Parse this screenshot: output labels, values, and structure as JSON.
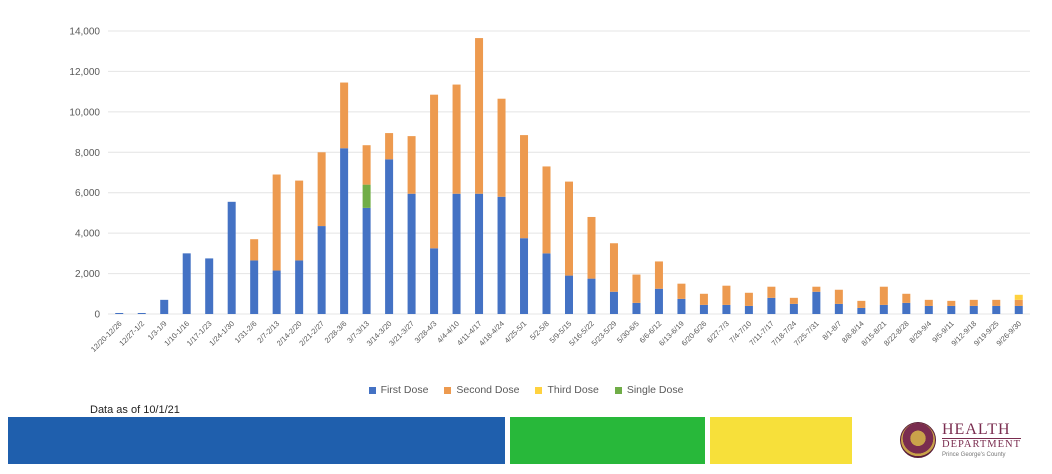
{
  "colors": {
    "first": "#4472c4",
    "second": "#ed9a4f",
    "third": "#ffd23f",
    "single": "#70ad47",
    "grid": "#e4e4e4",
    "band_blue": "#1f5fad",
    "band_green": "#28b83a",
    "band_yellow": "#f7e03a"
  },
  "chart_data": {
    "type": "bar",
    "stacked": true,
    "title": "",
    "xlabel": "",
    "ylabel": "",
    "ylim": [
      0,
      14000
    ],
    "yticks": [
      "0",
      "2,000",
      "4,000",
      "6,000",
      "8,000",
      "10,000",
      "12,000",
      "14,000"
    ],
    "grid": true,
    "legend_position": "bottom",
    "categories": [
      "12/20-12/26",
      "12/27-1/2",
      "1/3-1/9",
      "1/10-1/16",
      "1/17-1/23",
      "1/24-1/30",
      "1/31-2/6",
      "2/7-2/13",
      "2/14-2/20",
      "2/21-2/27",
      "2/28-3/6",
      "3/7-3/13",
      "3/14-3/20",
      "3/21-3/27",
      "3/28-4/3",
      "4/4-4/10",
      "4/11-4/17",
      "4/18-4/24",
      "4/25-5/1",
      "5/2-5/8",
      "5/9-5/15",
      "5/16-5/22",
      "5/23-5/29",
      "5/30-6/5",
      "6/6-6/12",
      "6/13-6/19",
      "6/20-6/26",
      "6/27-7/3",
      "7/4-7/10",
      "7/11-7/17",
      "7/18-7/24",
      "7/25-7/31",
      "8/1-8/7",
      "8/8-8/14",
      "8/15-8/21",
      "8/22-8/28",
      "8/29-9/4",
      "9/5-9/11",
      "9/12-9/18",
      "9/19-9/25",
      "9/26-9/30"
    ],
    "series": [
      {
        "name": "First Dose",
        "values": [
          50,
          50,
          700,
          3000,
          2750,
          5550,
          2650,
          2150,
          2650,
          4350,
          8200,
          5250,
          7650,
          5950,
          3250,
          5950,
          5950,
          5800,
          3750,
          3000,
          1900,
          1750,
          1100,
          550,
          1250,
          750,
          450,
          450,
          400,
          800,
          500,
          1100,
          500,
          300,
          450,
          550,
          400,
          400,
          400,
          400,
          400
        ]
      },
      {
        "name": "Second Dose",
        "values": [
          0,
          0,
          0,
          0,
          0,
          0,
          1050,
          4750,
          3950,
          3650,
          3250,
          1950,
          1300,
          2850,
          7600,
          5400,
          7700,
          4850,
          5100,
          4300,
          4650,
          3050,
          2400,
          1400,
          1350,
          750,
          550,
          950,
          650,
          550,
          300,
          250,
          700,
          350,
          900,
          450,
          300,
          250,
          300,
          300,
          300
        ]
      },
      {
        "name": "Third Dose",
        "values": [
          0,
          0,
          0,
          0,
          0,
          0,
          0,
          0,
          0,
          0,
          0,
          0,
          0,
          0,
          0,
          0,
          0,
          0,
          0,
          0,
          0,
          0,
          0,
          0,
          0,
          0,
          0,
          0,
          0,
          0,
          0,
          0,
          0,
          0,
          0,
          0,
          0,
          0,
          0,
          0,
          250
        ]
      },
      {
        "name": "Single Dose",
        "values": [
          0,
          0,
          0,
          0,
          0,
          0,
          0,
          0,
          0,
          0,
          0,
          1150,
          0,
          0,
          0,
          0,
          0,
          0,
          0,
          0,
          0,
          0,
          0,
          0,
          0,
          0,
          0,
          0,
          0,
          0,
          0,
          0,
          0,
          0,
          0,
          0,
          0,
          0,
          0,
          0,
          0
        ]
      }
    ]
  },
  "footer": {
    "data_as_of": "Data as of 10/1/21"
  },
  "logo": {
    "line1": "HEALTH",
    "line2": "DEPARTMENT",
    "line3": "Prince George's County"
  }
}
